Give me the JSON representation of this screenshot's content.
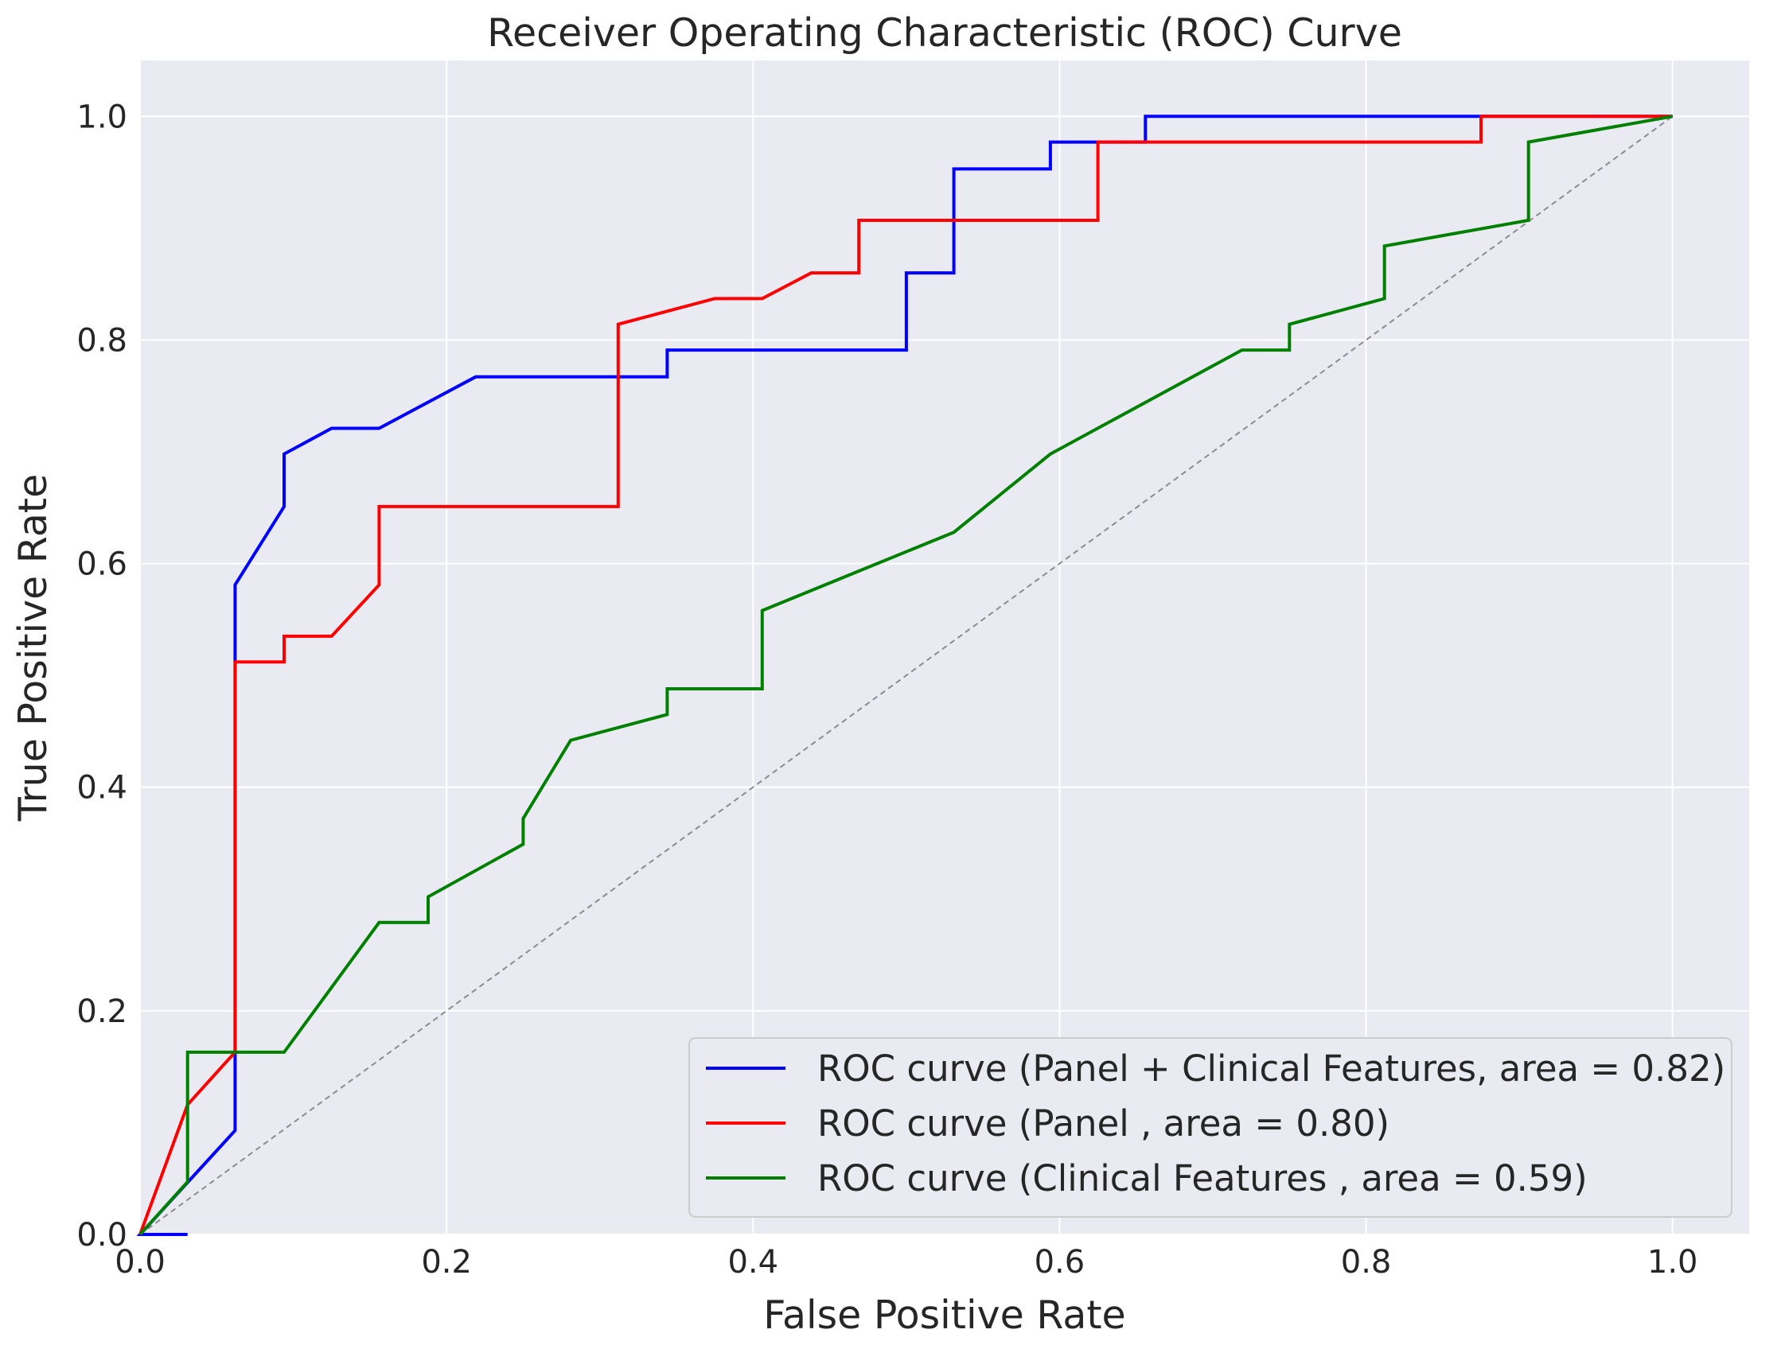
{
  "chart_data": {
    "type": "line",
    "title": "Receiver Operating Characteristic (ROC) Curve",
    "xlabel": "False Positive Rate",
    "ylabel": "True Positive Rate",
    "xlim": [
      0.0,
      1.05
    ],
    "ylim": [
      0.0,
      1.05
    ],
    "x_ticks": [
      "0.0",
      "0.2",
      "0.4",
      "0.6",
      "0.8",
      "1.0"
    ],
    "y_ticks": [
      "0.0",
      "0.2",
      "0.4",
      "0.6",
      "0.8",
      "1.0"
    ],
    "grid": true,
    "legend_position": "lower-right",
    "series": [
      {
        "name": "ROC curve (Panel + Clinical Features, area = 0.82)",
        "color": "#0000ff",
        "x": [
          0.0,
          0.031,
          0.031,
          0.0,
          0.0,
          0.062,
          0.062,
          0.094,
          0.094,
          0.125,
          0.156,
          0.219,
          0.344,
          0.344,
          0.5,
          0.5,
          0.531,
          0.531,
          0.594,
          0.594,
          0.656,
          0.656,
          0.875,
          1.0
        ],
        "y": [
          0.0,
          0.0,
          0.0,
          0.0,
          0.0,
          0.093,
          0.581,
          0.651,
          0.698,
          0.721,
          0.721,
          0.767,
          0.767,
          0.791,
          0.791,
          0.86,
          0.86,
          0.953,
          0.953,
          0.977,
          0.977,
          1.0,
          1.0,
          1.0
        ]
      },
      {
        "name": "ROC curve (Panel , area = 0.80)",
        "color": "#ff0000",
        "x": [
          0.0,
          0.031,
          0.062,
          0.062,
          0.094,
          0.094,
          0.125,
          0.156,
          0.156,
          0.312,
          0.312,
          0.375,
          0.406,
          0.438,
          0.469,
          0.469,
          0.625,
          0.625,
          0.875,
          0.875,
          1.0
        ],
        "y": [
          0.0,
          0.116,
          0.163,
          0.512,
          0.512,
          0.535,
          0.535,
          0.581,
          0.651,
          0.651,
          0.814,
          0.837,
          0.837,
          0.86,
          0.86,
          0.907,
          0.907,
          0.977,
          0.977,
          1.0,
          1.0
        ]
      },
      {
        "name": "ROC curve (Clinical Features , area = 0.59)",
        "color": "#008000",
        "x": [
          0.0,
          0.031,
          0.031,
          0.094,
          0.156,
          0.188,
          0.188,
          0.25,
          0.25,
          0.281,
          0.344,
          0.344,
          0.406,
          0.406,
          0.531,
          0.594,
          0.719,
          0.75,
          0.75,
          0.812,
          0.812,
          0.906,
          0.906,
          1.0
        ],
        "y": [
          0.0,
          0.047,
          0.163,
          0.163,
          0.279,
          0.279,
          0.302,
          0.349,
          0.372,
          0.442,
          0.465,
          0.488,
          0.488,
          0.558,
          0.628,
          0.698,
          0.791,
          0.791,
          0.814,
          0.837,
          0.884,
          0.907,
          0.977,
          1.0
        ]
      }
    ],
    "reference_line": {
      "x": [
        0.0,
        1.0
      ],
      "y": [
        0.0,
        1.0
      ],
      "color": "#8c8c8c",
      "style": "dashed"
    }
  }
}
